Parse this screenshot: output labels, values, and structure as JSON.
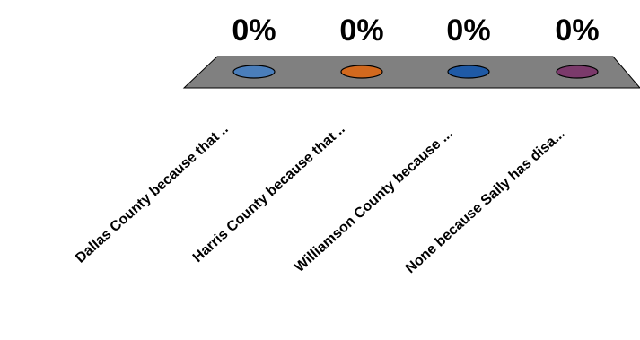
{
  "chart_data": {
    "type": "bar3d",
    "categories": [
      "Dallas County because that ..",
      "Harris County because that ..",
      "Williamson County because ...",
      "None because Sally has disa..."
    ],
    "values": [
      0,
      0,
      0,
      0
    ],
    "value_labels": [
      "0%",
      "0%",
      "0%",
      "0%"
    ],
    "colors": [
      "#4a7ebb",
      "#d2691e",
      "#1f5aa6",
      "#7b3a6b"
    ]
  }
}
